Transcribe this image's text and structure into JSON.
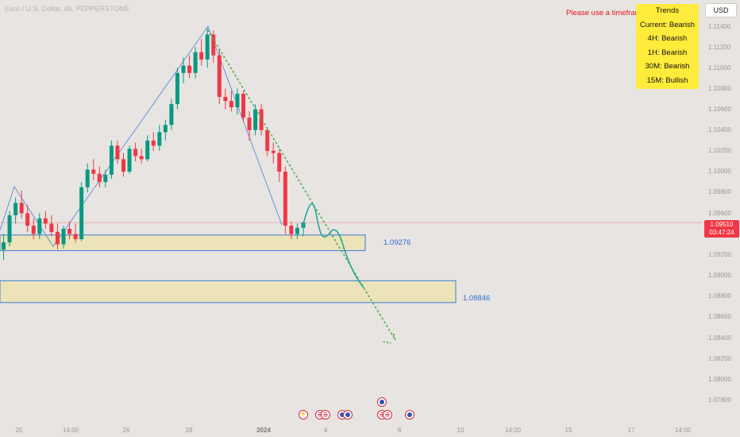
{
  "header": {
    "symbol_title": "Euro / U.S. Dollar, 4h, PEPPERSTONE"
  },
  "toolbar": {
    "currency_label": "USD"
  },
  "warning": {
    "text": "Please use a timeframe"
  },
  "trends": {
    "title": "Trends",
    "rows": [
      "Current: Bearish",
      "4H: Bearish",
      "1H: Bearish",
      "30M: Bearish",
      "15M: Bullish"
    ],
    "bg_color": "#ffeb3b"
  },
  "price_axis": {
    "ticks": [
      "1.11400",
      "1.11200",
      "1.11000",
      "1.10800",
      "1.10600",
      "1.10400",
      "1.10200",
      "1.10000",
      "1.09800",
      "1.09600",
      "1.09200",
      "1.09000",
      "1.08800",
      "1.08600",
      "1.08400",
      "1.08200",
      "1.08000",
      "1.07800"
    ]
  },
  "current_price": {
    "price": "1.09510",
    "countdown": "03:47:24",
    "color": "#f23645"
  },
  "zones": [
    {
      "label": "1.09276"
    },
    {
      "label": "1.08846"
    }
  ],
  "time_axis": {
    "ticks": [
      "20",
      "14:00",
      "26",
      "28",
      "2024",
      "4",
      "8",
      "10",
      "14:00",
      "15",
      "17",
      "14:00"
    ]
  },
  "events": [
    {
      "icon": "lightning-icon"
    },
    {
      "icon": "us-flag-icon"
    },
    {
      "icon": "us-flag-icon"
    },
    {
      "icon": "eu-flag-icon"
    },
    {
      "icon": "eu-flag-icon"
    },
    {
      "icon": "eu-flag-icon"
    },
    {
      "icon": "us-flag-icon"
    },
    {
      "icon": "us-flag-icon"
    },
    {
      "icon": "eu-flag-icon"
    }
  ],
  "colors": {
    "background": "#e7e4e1",
    "bull": "#089981",
    "bear": "#f23645",
    "zone_fill": "#ece3b8",
    "zone_border": "#3d78d8",
    "zigzag": "#4a7fe0",
    "projection": "#4caf50",
    "forecast_curve": "#26a69a"
  },
  "chart_data": {
    "type": "candlestick",
    "price_range": [
      1.0774,
      1.1148
    ],
    "candles": [
      [
        1.0925,
        1.094,
        1.0915,
        1.0932
      ],
      [
        1.0932,
        1.0962,
        1.0928,
        1.0958
      ],
      [
        1.0958,
        1.0975,
        1.095,
        1.097
      ],
      [
        1.097,
        1.0982,
        1.0955,
        1.096
      ],
      [
        1.096,
        1.0968,
        1.0942,
        1.0948
      ],
      [
        1.0948,
        1.0955,
        1.0935,
        1.094
      ],
      [
        1.094,
        1.096,
        1.0935,
        1.0955
      ],
      [
        1.0955,
        1.0962,
        1.0945,
        1.095
      ],
      [
        1.095,
        1.0958,
        1.0938,
        1.0942
      ],
      [
        1.0942,
        1.095,
        1.0925,
        1.093
      ],
      [
        1.093,
        1.0948,
        1.0926,
        1.0945
      ],
      [
        1.0945,
        1.0952,
        1.0935,
        1.094
      ],
      [
        1.094,
        1.095,
        1.0932,
        1.0935
      ],
      [
        1.0935,
        1.099,
        1.0933,
        1.0985
      ],
      [
        1.0985,
        1.1008,
        1.098,
        1.1002
      ],
      [
        1.1002,
        1.1012,
        1.0992,
        1.0998
      ],
      [
        1.0998,
        1.1005,
        1.0985,
        1.099
      ],
      [
        1.099,
        1.1002,
        1.0985,
        1.0997
      ],
      [
        1.0997,
        1.103,
        1.0993,
        1.1025
      ],
      [
        1.1025,
        1.103,
        1.1008,
        1.1012
      ],
      [
        1.1012,
        1.1018,
        1.0995,
        1.1
      ],
      [
        1.1,
        1.1025,
        1.0998,
        1.1022
      ],
      [
        1.1022,
        1.1028,
        1.101,
        1.1015
      ],
      [
        1.1015,
        1.1022,
        1.1008,
        1.1012
      ],
      [
        1.1012,
        1.1035,
        1.101,
        1.103
      ],
      [
        1.103,
        1.1038,
        1.102,
        1.1025
      ],
      [
        1.1025,
        1.1045,
        1.102,
        1.1038
      ],
      [
        1.1038,
        1.105,
        1.103,
        1.1045
      ],
      [
        1.1045,
        1.107,
        1.104,
        1.1065
      ],
      [
        1.1065,
        1.11,
        1.106,
        1.1095
      ],
      [
        1.1095,
        1.111,
        1.1085,
        1.1102
      ],
      [
        1.1102,
        1.1112,
        1.109,
        1.1095
      ],
      [
        1.1095,
        1.112,
        1.109,
        1.1115
      ],
      [
        1.1115,
        1.1128,
        1.1102,
        1.1108
      ],
      [
        1.1108,
        1.1138,
        1.11,
        1.1132
      ],
      [
        1.1132,
        1.1136,
        1.1105,
        1.1112
      ],
      [
        1.1112,
        1.1118,
        1.1065,
        1.1072
      ],
      [
        1.1072,
        1.108,
        1.106,
        1.1068
      ],
      [
        1.1068,
        1.1078,
        1.1058,
        1.1062
      ],
      [
        1.1062,
        1.108,
        1.1055,
        1.1075
      ],
      [
        1.1075,
        1.1078,
        1.1048,
        1.1052
      ],
      [
        1.1052,
        1.1058,
        1.103,
        1.104
      ],
      [
        1.104,
        1.1065,
        1.1035,
        1.106
      ],
      [
        1.106,
        1.1065,
        1.1035,
        1.104
      ],
      [
        1.104,
        1.1042,
        1.1015,
        1.102
      ],
      [
        1.102,
        1.1028,
        1.1008,
        1.1018
      ],
      [
        1.1018,
        1.1022,
        1.099,
        1.1
      ],
      [
        1.1,
        1.1005,
        1.094,
        1.0948
      ],
      [
        1.0948,
        1.0952,
        1.0935,
        1.094
      ],
      [
        1.094,
        1.095,
        1.0935,
        1.0946
      ],
      [
        1.0946,
        1.0952,
        1.0938,
        1.0951
      ]
    ],
    "zones": [
      {
        "top": 1.0939,
        "bottom": 1.0924,
        "label": "1.09276"
      },
      {
        "top": 1.0895,
        "bottom": 1.0874,
        "label": "1.08846"
      }
    ],
    "current_price": 1.0951
  }
}
